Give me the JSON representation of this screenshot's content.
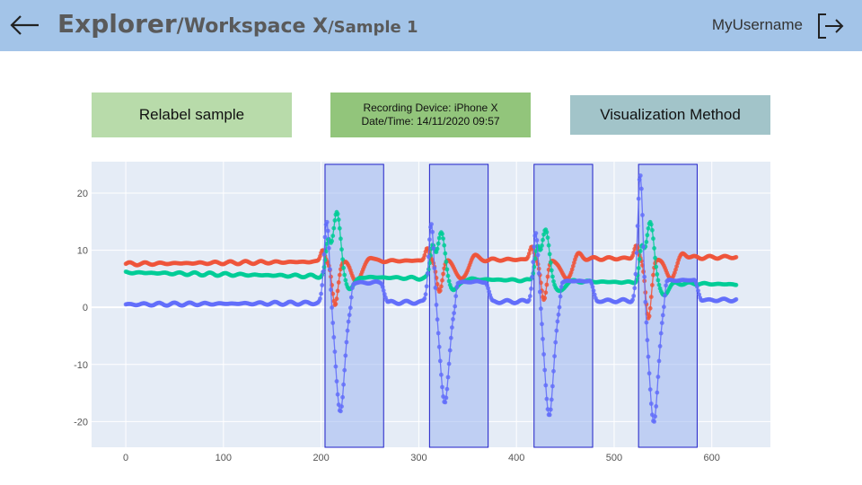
{
  "header": {
    "breadcrumb": {
      "root": "Explorer",
      "workspace": "/Workspace X",
      "sample": "/Sample 1"
    },
    "username": "MyUsername"
  },
  "actions": {
    "relabel_label": "Relabel sample",
    "visualization_label": "Visualization Method"
  },
  "device_info": {
    "device": "Recording Device: iPhone X",
    "datetime": "Date/Time: 14/11/2020 09:57"
  },
  "icons": {
    "back": "arrow-left-icon",
    "logout": "logout-icon"
  },
  "colors": {
    "header_bg": "#a3c4e8",
    "plot_bg": "#e5ecf6",
    "red": "#ef553b",
    "green": "#00cc96",
    "blue": "#636efa",
    "highlight": "#a0b8f0",
    "highlight_border": "#1f1fc8"
  },
  "chart_data": {
    "type": "scatter",
    "mode": "lines+markers",
    "xlim": [
      -35,
      660
    ],
    "ylim": [
      -24.5,
      25.5
    ],
    "x_ticks": [
      0,
      100,
      200,
      300,
      400,
      500,
      600
    ],
    "y_ticks": [
      -20,
      -10,
      0,
      10,
      20
    ],
    "grid": true,
    "n_points": 626,
    "series": [
      {
        "color": "#ef553b",
        "baseline_start": 7.6,
        "baseline_end": 8.8
      },
      {
        "color": "#00cc96",
        "baseline_start": 6.1,
        "baseline_end": 4.0
      },
      {
        "color": "#636efa",
        "baseline_start": 0.5,
        "baseline_end": 1.3
      }
    ],
    "gestures": [
      {
        "x_start": 204,
        "x_end": 264,
        "blue_min": -18.5,
        "blue_max": 15.0,
        "green_max": 17.5,
        "red_min": 0.0
      },
      {
        "x_start": 311,
        "x_end": 371,
        "blue_min": -17.0,
        "blue_max": 14.5,
        "green_max": 14.0,
        "red_min": 2.3
      },
      {
        "x_start": 418,
        "x_end": 478,
        "blue_min": -19.5,
        "blue_max": 12.5,
        "green_max": 15.0,
        "red_min": 0.5
      },
      {
        "x_start": 525,
        "x_end": 585,
        "blue_min": -21.0,
        "blue_max": 22.5,
        "green_max": 17.0,
        "red_min": -3.0
      }
    ]
  }
}
